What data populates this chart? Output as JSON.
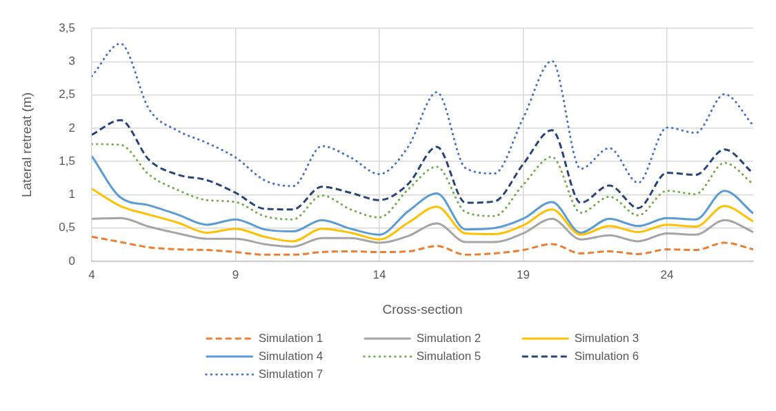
{
  "chart_data": {
    "type": "line",
    "xlabel": "Cross-section",
    "ylabel": "Lateral retreat (m)",
    "x": [
      4,
      5,
      6,
      7,
      8,
      9,
      10,
      11,
      12,
      13,
      14,
      15,
      16,
      17,
      18,
      19,
      20,
      21,
      22,
      23,
      24,
      25,
      26,
      27
    ],
    "xlim": [
      4,
      27
    ],
    "xticks": [
      4,
      9,
      14,
      19,
      24
    ],
    "ylim": [
      0,
      3.5
    ],
    "yticks": [
      0,
      {
        "value": 0.5,
        "label": "0,5"
      },
      1,
      {
        "value": 1.5,
        "label": "1,5"
      },
      2,
      {
        "value": 2.5,
        "label": "2,5"
      },
      3,
      {
        "value": 3.5,
        "label": "3,5"
      }
    ],
    "grid": true,
    "legend": "bottom",
    "marker": "none",
    "series": [
      {
        "name": "Simulation 1",
        "color": "#ed7d31",
        "line_style": "dashed",
        "values": [
          0.37,
          0.29,
          0.21,
          0.18,
          0.17,
          0.14,
          0.1,
          0.1,
          0.14,
          0.15,
          0.14,
          0.15,
          0.23,
          0.1,
          0.12,
          0.17,
          0.26,
          0.12,
          0.15,
          0.11,
          0.18,
          0.17,
          0.28,
          0.18
        ]
      },
      {
        "name": "Simulation 2",
        "color": "#a5a5a5",
        "line_style": "solid",
        "values": [
          0.64,
          0.65,
          0.52,
          0.42,
          0.34,
          0.34,
          0.26,
          0.22,
          0.35,
          0.35,
          0.28,
          0.38,
          0.57,
          0.29,
          0.29,
          0.42,
          0.64,
          0.33,
          0.39,
          0.3,
          0.42,
          0.4,
          0.62,
          0.44
        ]
      },
      {
        "name": "Simulation 3",
        "color": "#ffc000",
        "line_style": "solid",
        "values": [
          1.09,
          0.83,
          0.7,
          0.58,
          0.43,
          0.49,
          0.37,
          0.3,
          0.49,
          0.43,
          0.33,
          0.58,
          0.82,
          0.42,
          0.41,
          0.54,
          0.78,
          0.4,
          0.53,
          0.44,
          0.55,
          0.52,
          0.83,
          0.6
        ]
      },
      {
        "name": "Simulation 4",
        "color": "#5b9bd5",
        "line_style": "solid",
        "values": [
          1.58,
          0.96,
          0.84,
          0.7,
          0.55,
          0.63,
          0.48,
          0.45,
          0.62,
          0.49,
          0.4,
          0.75,
          1.02,
          0.48,
          0.5,
          0.64,
          0.89,
          0.43,
          0.64,
          0.53,
          0.65,
          0.63,
          1.06,
          0.72
        ]
      },
      {
        "name": "Simulation 5",
        "color": "#70ad47",
        "line_style": "dotted",
        "values": [
          1.76,
          1.75,
          1.3,
          1.07,
          0.92,
          0.89,
          0.68,
          0.63,
          0.99,
          0.78,
          0.66,
          1.08,
          1.42,
          0.74,
          0.68,
          1.15,
          1.57,
          0.73,
          0.97,
          0.69,
          1.06,
          1.01,
          1.48,
          1.16
        ]
      },
      {
        "name": "Simulation 6",
        "color": "#264478",
        "line_style": "dashed",
        "values": [
          1.9,
          2.12,
          1.52,
          1.3,
          1.22,
          1.03,
          0.79,
          0.78,
          1.12,
          1.03,
          0.92,
          1.16,
          1.72,
          0.88,
          0.9,
          1.46,
          1.97,
          0.88,
          1.14,
          0.8,
          1.33,
          1.3,
          1.68,
          1.32
        ]
      },
      {
        "name": "Simulation 7",
        "color": "#4472c4",
        "line_style": "dotted",
        "values": [
          2.78,
          3.27,
          2.28,
          1.96,
          1.78,
          1.56,
          1.22,
          1.13,
          1.73,
          1.56,
          1.31,
          1.72,
          2.54,
          1.4,
          1.32,
          2.15,
          3.01,
          1.39,
          1.7,
          1.18,
          2.01,
          1.93,
          2.51,
          2.04
        ]
      }
    ]
  }
}
